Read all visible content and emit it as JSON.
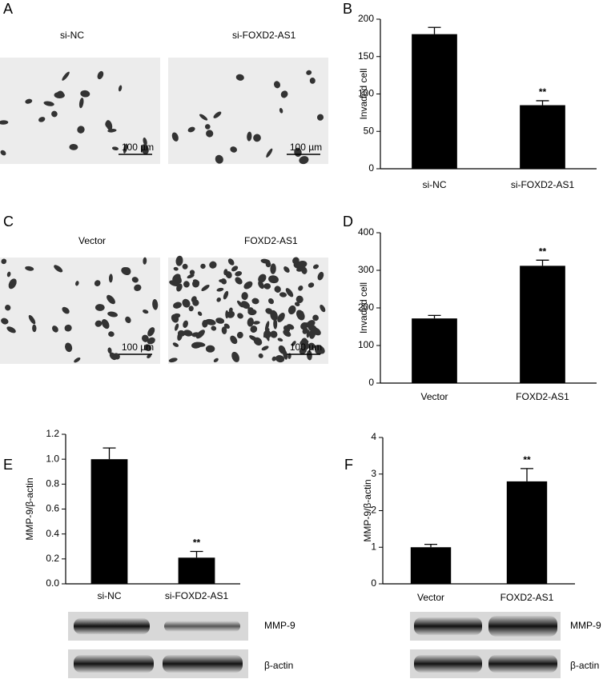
{
  "panels": [
    {
      "letter": "A"
    },
    {
      "letter": "B"
    },
    {
      "letter": "C"
    },
    {
      "letter": "D"
    },
    {
      "letter": "E"
    },
    {
      "letter": "F"
    }
  ],
  "images": [
    {
      "label": "si-NC",
      "scale": "100 µm"
    },
    {
      "label": "si-FOXD2-AS1",
      "scale": "100 µm"
    },
    {
      "label": "Vector",
      "scale": "100 µm"
    },
    {
      "label": "FOXD2-AS1",
      "scale": "100 µm"
    }
  ],
  "blots": [
    {
      "labels": [
        "MMP-9",
        "β-actin"
      ]
    },
    {
      "labels": [
        "MMP-9",
        "β-actin"
      ]
    }
  ],
  "chart_data": [
    {
      "type": "bar",
      "y_label": "Invaded cell",
      "categories": [
        "si-NC",
        "si-FOXD2-AS1"
      ],
      "values": [
        180,
        85
      ],
      "errors": [
        9,
        6
      ],
      "value_annotations": [
        null,
        "**"
      ],
      "color": "#000000",
      "ylim": [
        0,
        200
      ],
      "yticks": [
        0,
        50,
        100,
        150,
        200
      ]
    },
    {
      "type": "bar",
      "y_label": "Invaded cell",
      "categories": [
        "Vector",
        "FOXD2-AS1"
      ],
      "values": [
        172,
        312
      ],
      "errors": [
        8,
        15
      ],
      "value_annotations": [
        null,
        "**"
      ],
      "color": "#000000",
      "ylim": [
        0,
        400
      ],
      "yticks": [
        0,
        100,
        200,
        300,
        400
      ]
    },
    {
      "type": "bar",
      "y_label": "MMP-9/β-actin",
      "categories": [
        "si-NC",
        "si-FOXD2-AS1"
      ],
      "values": [
        1.0,
        0.21
      ],
      "errors": [
        0.09,
        0.05
      ],
      "value_annotations": [
        null,
        "**"
      ],
      "color": "#000000",
      "ylim": [
        0,
        1.2
      ],
      "yticks": [
        {
          "value": 0,
          "label": "0.0"
        },
        0.2,
        0.4,
        0.6,
        0.8,
        {
          "value": 1,
          "label": "1.0"
        },
        1.2
      ]
    },
    {
      "type": "bar",
      "y_label": "MMP-9/β-actin",
      "categories": [
        "Vector",
        "FOXD2-AS1"
      ],
      "values": [
        1.0,
        2.8
      ],
      "errors": [
        0.08,
        0.35
      ],
      "value_annotations": [
        null,
        "**"
      ],
      "color": "#000000",
      "ylim": [
        0,
        4
      ],
      "yticks": [
        0,
        1,
        2,
        3,
        4
      ]
    }
  ]
}
